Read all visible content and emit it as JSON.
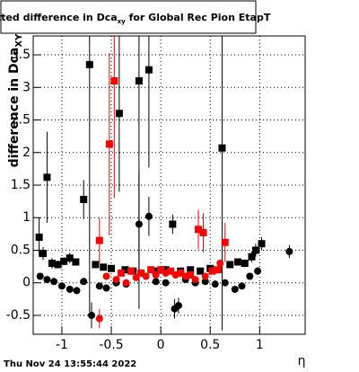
{
  "chart_data": {
    "type": "scatter",
    "title": "Fitted difference in Dca",
    "title_sub": "xy",
    "title_end": " for Global Rec Pion EtapT",
    "y_label": "difference in Dca",
    "y_label_sub": "XY",
    "x_label": "η",
    "footer": "Thu Nov 24 13:55:44 2022",
    "xlim": [
      -1.29,
      1.46
    ],
    "ylim": [
      -0.79,
      3.79
    ],
    "xticks": [
      -1,
      -0.5,
      0,
      0.5,
      1
    ],
    "yticks": [
      -0.5,
      0,
      0.5,
      1,
      1.5,
      2,
      2.5,
      3,
      3.5
    ],
    "grid": true,
    "series": [
      {
        "color": "#000000",
        "marker": "square",
        "x": [
          -1.23,
          -1.19,
          -1.15,
          -1.1,
          -1.04,
          -0.98,
          -0.92,
          -0.86,
          -0.78,
          -0.72,
          -0.66,
          -0.58,
          -0.5,
          -0.42,
          -0.36,
          -0.28,
          -0.22,
          -0.12,
          -0.05,
          0.05,
          0.12,
          0.2,
          0.3,
          0.4,
          0.5,
          0.62,
          0.7,
          0.78,
          0.85,
          0.92,
          0.96,
          1.02
        ],
        "values": [
          0.7,
          0.45,
          1.62,
          0.3,
          0.28,
          0.33,
          0.38,
          0.32,
          1.28,
          3.35,
          0.28,
          0.24,
          0.22,
          2.6,
          0.2,
          0.18,
          3.1,
          3.27,
          0.18,
          0.2,
          0.9,
          0.18,
          0.2,
          0.18,
          0.22,
          2.07,
          0.28,
          0.32,
          0.3,
          0.4,
          0.5,
          0.6
        ],
        "errors": [
          0.3,
          0.1,
          0.7,
          0.08,
          0.06,
          0.06,
          0.08,
          0.05,
          0.3,
          3.8,
          0.05,
          0.05,
          0.04,
          1.2,
          0.04,
          0.04,
          3.5,
          1.5,
          0.03,
          0.03,
          0.15,
          0.03,
          0.04,
          0.04,
          0.04,
          2.8,
          0.05,
          0.05,
          0.06,
          0.08,
          0.1,
          0.1
        ]
      },
      {
        "color": "#000000",
        "marker": "circle",
        "x": [
          -1.22,
          -1.15,
          -1.08,
          -1.0,
          -0.92,
          -0.85,
          -0.78,
          -0.7,
          -0.62,
          -0.55,
          -0.45,
          -0.35,
          -0.22,
          -0.12,
          -0.05,
          0.05,
          0.14,
          0.18,
          0.25,
          0.35,
          0.45,
          0.55,
          0.65,
          0.75,
          0.82,
          0.9,
          0.98,
          1.3
        ],
        "values": [
          0.1,
          0.05,
          0.02,
          -0.05,
          -0.1,
          -0.12,
          0.02,
          -0.5,
          -0.05,
          -0.08,
          0.0,
          -0.02,
          0.9,
          1.02,
          0.02,
          0.0,
          -0.4,
          -0.35,
          0.05,
          0.0,
          0.02,
          -0.02,
          0.0,
          -0.1,
          -0.05,
          0.1,
          0.18,
          0.48
        ],
        "errors": [
          0.05,
          0.04,
          0.04,
          0.04,
          0.05,
          0.05,
          0.04,
          0.2,
          0.04,
          0.04,
          0.03,
          0.03,
          0.8,
          0.3,
          0.03,
          0.03,
          0.15,
          0.12,
          0.03,
          0.03,
          0.03,
          0.04,
          0.04,
          0.05,
          0.05,
          0.05,
          0.06,
          0.1
        ]
      },
      {
        "color": "#ff0000",
        "marker": "square",
        "x": [
          -0.62,
          -0.52,
          -0.47,
          -0.4,
          -0.3,
          -0.2,
          -0.1,
          0.0,
          0.1,
          0.2,
          0.3,
          0.38,
          0.43,
          0.52,
          0.58,
          0.65
        ],
        "values": [
          0.65,
          2.13,
          3.1,
          0.15,
          0.18,
          0.15,
          0.2,
          0.2,
          0.18,
          0.15,
          0.12,
          0.82,
          0.77,
          0.18,
          0.2,
          0.62
        ],
        "errors": [
          0.35,
          1.4,
          1.8,
          0.04,
          0.04,
          0.03,
          0.03,
          0.03,
          0.03,
          0.03,
          0.04,
          0.3,
          0.3,
          0.05,
          0.05,
          0.3
        ]
      },
      {
        "color": "#ff0000",
        "marker": "circle",
        "x": [
          -0.62,
          -0.55,
          -0.45,
          -0.35,
          -0.25,
          -0.15,
          -0.05,
          0.05,
          0.15,
          0.25,
          0.35,
          0.45,
          0.55,
          0.6
        ],
        "values": [
          -0.55,
          0.1,
          0.05,
          0.0,
          0.08,
          0.1,
          0.12,
          0.15,
          0.12,
          0.1,
          0.05,
          0.1,
          0.2,
          0.3
        ],
        "errors": [
          0.15,
          0.05,
          0.04,
          0.03,
          0.03,
          0.03,
          0.03,
          0.03,
          0.03,
          0.03,
          0.04,
          0.05,
          0.05,
          0.06
        ]
      }
    ]
  }
}
